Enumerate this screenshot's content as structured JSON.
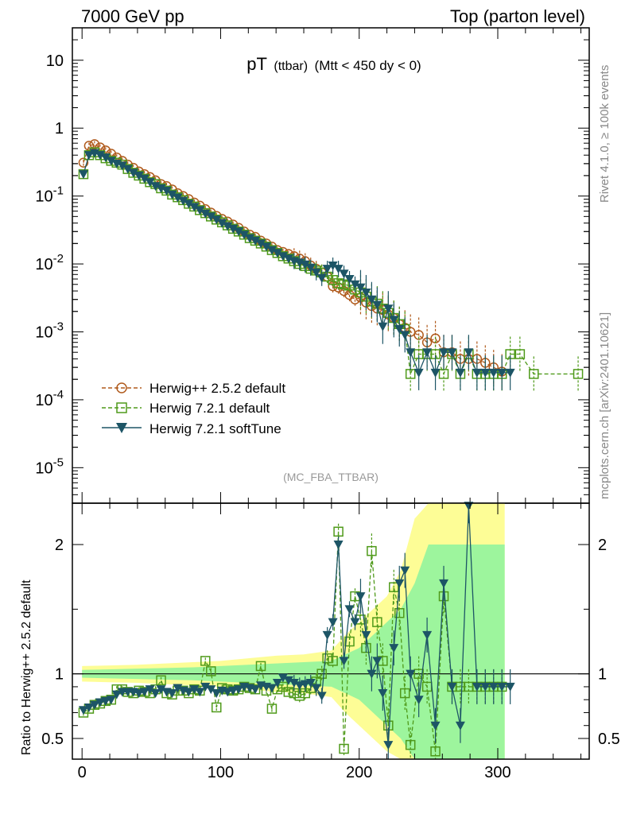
{
  "header": {
    "left": "7000 GeV pp",
    "right": "Top (parton level)"
  },
  "plot_title": {
    "main": "pT",
    "sub": "(ttbar)",
    "cuts": "(Mtt < 450 dy < 0)"
  },
  "side_labels": {
    "rivet": "Rivet 4.1.0, ≥ 100k events",
    "mcplots": "mcplots.cern.ch [arXiv:2401.10621]"
  },
  "analysis_label": "(MC_FBA_TTBAR)",
  "ratio_ylabel": "Ratio to Herwig++ 2.5.2 default",
  "colors": {
    "herwigpp": "#b05a1c",
    "herwig7_default": "#4f9a1a",
    "herwig7_softtune": "#1d5566",
    "band_yellow": "#fdfd96",
    "band_green": "#9df59d"
  },
  "chart_data": [
    {
      "type": "scatter",
      "title": "pT (ttbar) (Mtt < 450 dy < 0)",
      "xlabel": "",
      "ylabel": "",
      "xlim": [
        -7,
        366
      ],
      "ylim": [
        3e-06,
        30
      ],
      "yscale": "log",
      "x_ticks": [
        "0",
        "100",
        "200",
        "300"
      ],
      "y_ticks": [
        "10",
        "1",
        "10^-1",
        "10^-2",
        "10^-3",
        "10^-4",
        "10^-5"
      ],
      "legend_position": "bottom-left",
      "series": [
        {
          "name": "Herwig++ 2.5.2 default",
          "marker": "open-circle",
          "line": "dashed",
          "x": [
            1,
            5,
            9,
            13,
            17,
            21,
            25,
            29,
            33,
            37,
            41,
            45,
            49,
            53,
            57,
            61,
            65,
            69,
            73,
            77,
            81,
            85,
            89,
            93,
            97,
            101,
            105,
            109,
            113,
            117,
            121,
            125,
            129,
            133,
            137,
            141,
            145,
            149,
            153,
            157,
            161,
            165,
            169,
            173,
            177,
            181,
            185,
            189,
            193,
            197,
            201,
            205,
            209,
            213,
            217,
            221,
            225,
            229,
            233,
            237,
            243,
            249,
            255,
            261,
            267,
            273,
            279,
            285,
            291,
            297,
            303
          ],
          "y": [
            0.31,
            0.55,
            0.58,
            0.52,
            0.47,
            0.42,
            0.37,
            0.33,
            0.29,
            0.26,
            0.23,
            0.21,
            0.19,
            0.17,
            0.15,
            0.14,
            0.125,
            0.11,
            0.1,
            0.09,
            0.08,
            0.072,
            0.064,
            0.057,
            0.051,
            0.046,
            0.042,
            0.038,
            0.034,
            0.03,
            0.027,
            0.025,
            0.022,
            0.02,
            0.018,
            0.016,
            0.015,
            0.014,
            0.013,
            0.012,
            0.011,
            0.0095,
            0.0085,
            0.0075,
            0.0065,
            0.0047,
            0.0045,
            0.004,
            0.0035,
            0.003,
            0.0032,
            0.0027,
            0.0024,
            0.0022,
            0.0021,
            0.0018,
            0.0016,
            0.0013,
            0.00115,
            0.001,
            0.0009,
            0.0007,
            0.0008,
            0.0005,
            0.0005,
            0.0004,
            0.0004,
            0.0004,
            0.00035,
            0.0003,
            0.00026
          ]
        },
        {
          "name": "Herwig 7.2.1 default",
          "marker": "open-square",
          "line": "dashed",
          "x": [
            1,
            5,
            9,
            13,
            17,
            21,
            25,
            29,
            33,
            37,
            41,
            45,
            49,
            53,
            57,
            61,
            65,
            69,
            73,
            77,
            81,
            85,
            89,
            93,
            97,
            101,
            105,
            109,
            113,
            117,
            121,
            125,
            129,
            133,
            137,
            141,
            145,
            149,
            153,
            157,
            161,
            165,
            169,
            173,
            177,
            181,
            185,
            189,
            193,
            197,
            201,
            205,
            209,
            213,
            217,
            221,
            225,
            229,
            233,
            237,
            243,
            249,
            255,
            261,
            267,
            273,
            279,
            285,
            291,
            297,
            303,
            309,
            316,
            326,
            358
          ],
          "y": [
            0.21,
            0.4,
            0.44,
            0.4,
            0.36,
            0.33,
            0.31,
            0.29,
            0.25,
            0.22,
            0.2,
            0.18,
            0.16,
            0.15,
            0.13,
            0.12,
            0.105,
            0.096,
            0.087,
            0.077,
            0.07,
            0.062,
            0.056,
            0.05,
            0.045,
            0.041,
            0.037,
            0.033,
            0.03,
            0.027,
            0.024,
            0.022,
            0.02,
            0.018,
            0.016,
            0.0145,
            0.013,
            0.012,
            0.011,
            0.01,
            0.0093,
            0.0085,
            0.008,
            0.0075,
            0.0065,
            0.0058,
            0.0052,
            0.005,
            0.0048,
            0.0042,
            0.0038,
            0.0033,
            0.0028,
            0.0026,
            0.0022,
            0.0019,
            0.0016,
            0.0013,
            0.0011,
            0.00024,
            0.00047,
            0.00047,
            0.00047,
            0.00024,
            0.00047,
            0.00024,
            0.00047,
            0.00024,
            0.00024,
            0.00024,
            0.00024,
            0.00047,
            0.00047,
            0.00024,
            0.00024
          ]
        },
        {
          "name": "Herwig 7.2.1 softTune",
          "marker": "filled-triangle-down",
          "line": "solid",
          "x": [
            1,
            5,
            9,
            13,
            17,
            21,
            25,
            29,
            33,
            37,
            41,
            45,
            49,
            53,
            57,
            61,
            65,
            69,
            73,
            77,
            81,
            85,
            89,
            93,
            97,
            101,
            105,
            109,
            113,
            117,
            121,
            125,
            129,
            133,
            137,
            141,
            145,
            149,
            153,
            157,
            161,
            165,
            169,
            173,
            177,
            181,
            185,
            189,
            193,
            197,
            201,
            205,
            209,
            213,
            217,
            221,
            225,
            229,
            233,
            237,
            243,
            249,
            255,
            261,
            267,
            273,
            279,
            285,
            291,
            297,
            303,
            309
          ],
          "y": [
            0.21,
            0.4,
            0.43,
            0.4,
            0.37,
            0.33,
            0.3,
            0.28,
            0.25,
            0.22,
            0.2,
            0.18,
            0.16,
            0.14,
            0.13,
            0.12,
            0.105,
            0.095,
            0.085,
            0.077,
            0.069,
            0.062,
            0.055,
            0.05,
            0.045,
            0.04,
            0.036,
            0.033,
            0.03,
            0.027,
            0.024,
            0.022,
            0.02,
            0.018,
            0.016,
            0.0145,
            0.013,
            0.012,
            0.011,
            0.0105,
            0.0098,
            0.0088,
            0.0075,
            0.0062,
            0.0085,
            0.0095,
            0.0085,
            0.0072,
            0.006,
            0.005,
            0.0045,
            0.0038,
            0.003,
            0.0025,
            0.0012,
            0.0022,
            0.0015,
            0.0011,
            0.0009,
            0.0005,
            0.00025,
            0.0005,
            0.00025,
            0.0005,
            0.0005,
            0.00025,
            0.0005,
            0.00025,
            0.00025,
            0.00025,
            0.00025,
            0.00025
          ]
        }
      ]
    },
    {
      "type": "scatter",
      "title": "",
      "xlabel": "",
      "ylabel": "Ratio to Herwig++ 2.5.2 default",
      "xlim": [
        -7,
        366
      ],
      "ylim": [
        0.34,
        2.32
      ],
      "x_ticks": [
        "0",
        "100",
        "200",
        "300"
      ],
      "y_ticks": [
        "0.5",
        "1",
        "2"
      ],
      "reference_line": 1,
      "bands": {
        "x": [
          0,
          20,
          40,
          60,
          80,
          100,
          120,
          140,
          160,
          180,
          190,
          200,
          210,
          220,
          230,
          240,
          250,
          260,
          270,
          280,
          290,
          300,
          305
        ],
        "yellow_half_width": [
          0.06,
          0.065,
          0.07,
          0.08,
          0.09,
          0.1,
          0.12,
          0.14,
          0.15,
          0.18,
          0.3,
          0.4,
          0.5,
          0.6,
          0.8,
          1.2,
          1.5,
          1.5,
          1.5,
          1.5,
          1.5,
          1.5,
          1.5
        ],
        "green_half_width": [
          0.03,
          0.035,
          0.04,
          0.045,
          0.05,
          0.06,
          0.07,
          0.08,
          0.09,
          0.1,
          0.15,
          0.2,
          0.3,
          0.4,
          0.5,
          0.7,
          1.0,
          1.0,
          1.0,
          1.0,
          1.0,
          1.0,
          1.0
        ]
      },
      "series": [
        {
          "name": "Herwig 7.2.1 default",
          "marker": "open-square",
          "line": "dashed",
          "x": [
            1,
            5,
            9,
            13,
            17,
            21,
            25,
            29,
            33,
            37,
            41,
            45,
            49,
            53,
            57,
            61,
            65,
            69,
            73,
            77,
            81,
            85,
            89,
            93,
            97,
            101,
            105,
            109,
            113,
            117,
            121,
            125,
            129,
            133,
            137,
            141,
            145,
            149,
            153,
            157,
            161,
            165,
            169,
            173,
            177,
            181,
            185,
            189,
            193,
            197,
            201,
            205,
            209,
            213,
            217,
            221,
            225,
            229,
            233,
            237,
            243,
            249,
            255,
            261,
            267,
            273,
            279,
            285,
            291,
            297,
            303
          ],
          "y": [
            0.7,
            0.73,
            0.76,
            0.77,
            0.79,
            0.8,
            0.88,
            0.88,
            0.86,
            0.85,
            0.87,
            0.86,
            0.85,
            0.88,
            0.95,
            0.85,
            0.84,
            0.87,
            0.87,
            0.85,
            0.88,
            0.87,
            1.1,
            1.02,
            0.74,
            0.89,
            0.88,
            0.87,
            0.88,
            0.9,
            0.89,
            0.88,
            1.06,
            0.87,
            0.73,
            0.88,
            0.9,
            0.86,
            0.85,
            0.83,
            0.85,
            0.89,
            0.94,
            1.0,
            1.12,
            1.1,
            2.1,
            0.42,
            1.25,
            1.6,
            1.42,
            1.2,
            1.95,
            1.4,
            1.1,
            0.6,
            1.67,
            1.47,
            0.85,
            0.45,
            1.0,
            0.9,
            0.4,
            1.6,
            0.9,
            0.9,
            0.9,
            0.9,
            0.9,
            0.9,
            0.9
          ]
        },
        {
          "name": "Herwig 7.2.1 softTune",
          "marker": "filled-triangle-down",
          "line": "solid",
          "x": [
            1,
            5,
            9,
            13,
            17,
            21,
            25,
            29,
            33,
            37,
            41,
            45,
            49,
            53,
            57,
            61,
            65,
            69,
            73,
            77,
            81,
            85,
            89,
            93,
            97,
            101,
            105,
            109,
            113,
            117,
            121,
            125,
            129,
            133,
            137,
            141,
            145,
            149,
            153,
            157,
            161,
            165,
            169,
            173,
            177,
            181,
            185,
            189,
            193,
            197,
            201,
            205,
            209,
            213,
            217,
            221,
            225,
            229,
            233,
            237,
            243,
            249,
            255,
            261,
            267,
            273,
            279,
            285,
            291,
            297,
            303,
            309
          ],
          "y": [
            0.72,
            0.74,
            0.76,
            0.78,
            0.79,
            0.8,
            0.84,
            0.86,
            0.86,
            0.86,
            0.85,
            0.86,
            0.88,
            0.85,
            0.88,
            0.86,
            0.85,
            0.89,
            0.87,
            0.86,
            0.88,
            0.86,
            0.9,
            0.88,
            0.85,
            0.87,
            0.86,
            0.87,
            0.88,
            0.9,
            0.89,
            0.88,
            0.91,
            0.9,
            0.89,
            0.93,
            0.97,
            0.95,
            0.93,
            0.91,
            0.92,
            0.93,
            0.89,
            0.83,
            1.3,
            1.4,
            2.0,
            1.1,
            1.5,
            1.4,
            1.6,
            1.3,
            1.0,
            1.1,
            0.85,
            0.45,
            1.2,
            1.7,
            1.8,
            1.0,
            0.8,
            1.3,
            0.6,
            1.7,
            0.9,
            0.6,
            2.3,
            0.9,
            0.9,
            0.9,
            0.9,
            0.9
          ]
        }
      ]
    }
  ]
}
